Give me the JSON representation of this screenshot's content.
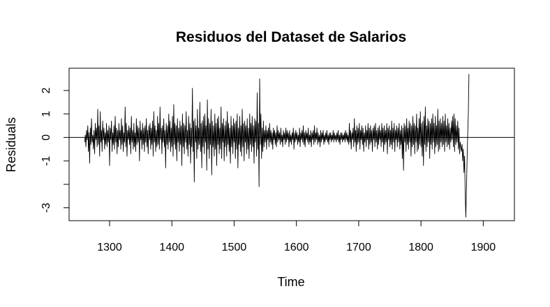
{
  "chart_data": {
    "type": "line",
    "title": "Residuos del Dataset de Salarios",
    "xlabel": "Time",
    "ylabel": "Residuals",
    "xlim": [
      1235,
      1950
    ],
    "ylim": [
      -3.55,
      2.95
    ],
    "x_ticks": [
      1300,
      1400,
      1500,
      1600,
      1700,
      1800,
      1900
    ],
    "x_tick_labels": [
      "1300",
      "1400",
      "1500",
      "1600",
      "1700",
      "1800",
      "1900"
    ],
    "y_ticks": [
      2,
      1,
      0,
      -1,
      -2,
      -3
    ],
    "y_tick_labels": [
      "2",
      "1",
      "0",
      "-1",
      "",
      "-3"
    ],
    "reference_line_y": 0,
    "grid": false,
    "legend": "none",
    "line_color": "#000000",
    "series": [
      {
        "x_start": 1260,
        "x_step": 1,
        "values": [
          -0.2,
          0.1,
          -0.4,
          0.3,
          -0.1,
          0.5,
          -0.6,
          0.2,
          -1.1,
          0.4,
          -0.3,
          0.8,
          -0.2,
          0.1,
          -0.5,
          0.3,
          -0.7,
          0.6,
          -0.1,
          0.4,
          -0.4,
          1.2,
          -0.3,
          0.5,
          -0.8,
          1.1,
          -0.2,
          0.3,
          -0.6,
          0.7,
          -0.1,
          0.4,
          -0.5,
          0.2,
          -0.3,
          0.6,
          -0.4,
          0.3,
          -0.2,
          0.5,
          -1.2,
          0.4,
          -0.1,
          0.7,
          -0.6,
          0.2,
          -0.3,
          0.5,
          -0.5,
          0.9,
          -0.2,
          0.4,
          -0.7,
          0.3,
          -0.4,
          0.6,
          -0.1,
          0.3,
          -0.5,
          0.8,
          -0.3,
          0.5,
          -0.6,
          0.2,
          -0.2,
          1.3,
          -0.4,
          0.6,
          -0.8,
          0.3,
          -0.1,
          0.5,
          -0.3,
          0.4,
          -0.7,
          0.9,
          -0.2,
          0.3,
          -0.5,
          0.6,
          -0.4,
          0.2,
          -0.6,
          0.8,
          -0.3,
          0.5,
          -0.2,
          0.4,
          -1.0,
          0.7,
          -0.1,
          0.3,
          -0.5,
          0.6,
          -0.3,
          0.4,
          -0.6,
          0.5,
          -0.2,
          0.8,
          -0.4,
          0.3,
          -0.7,
          0.5,
          -0.1,
          0.6,
          -0.5,
          0.4,
          -0.3,
          0.7,
          -0.8,
          1.1,
          -0.2,
          0.5,
          -0.6,
          0.3,
          -0.4,
          0.9,
          -0.3,
          0.6,
          -0.5,
          1.3,
          -0.1,
          0.4,
          -0.7,
          0.5,
          -0.2,
          0.8,
          -0.4,
          0.3,
          -1.3,
          0.6,
          -0.3,
          0.5,
          -0.5,
          1.0,
          -0.2,
          0.7,
          -0.6,
          0.4,
          -0.4,
          0.9,
          -0.8,
          1.4,
          -0.3,
          0.6,
          -0.5,
          0.5,
          -1.0,
          0.8,
          -0.2,
          0.4,
          -0.6,
          0.7,
          -0.3,
          0.5,
          -1.2,
          1.0,
          -0.4,
          0.6,
          -0.7,
          0.5,
          -0.2,
          1.1,
          -0.5,
          0.3,
          -0.8,
          0.9,
          -0.3,
          0.6,
          -1.1,
          0.4,
          -0.4,
          2.1,
          -0.6,
          0.7,
          -1.9,
          0.8,
          -0.2,
          0.5,
          -0.9,
          1.2,
          -0.5,
          0.4,
          -0.3,
          1.5,
          -0.6,
          0.6,
          -1.3,
          0.7,
          -0.4,
          0.9,
          -0.7,
          1.0,
          -0.2,
          0.5,
          -1.4,
          1.6,
          -0.5,
          0.8,
          -0.9,
          0.6,
          -0.3,
          1.2,
          -1.6,
          0.7,
          -0.4,
          0.5,
          -0.8,
          1.0,
          -0.5,
          0.6,
          -1.2,
          0.8,
          -0.3,
          0.9,
          -0.7,
          0.4,
          -0.5,
          1.3,
          -0.9,
          0.6,
          -0.2,
          0.8,
          -1.0,
          0.5,
          -0.4,
          0.7,
          -0.8,
          1.1,
          -0.3,
          0.6,
          -0.6,
          0.4,
          -1.1,
          0.9,
          -0.4,
          0.5,
          -0.7,
          0.8,
          -0.2,
          0.6,
          -0.9,
          0.7,
          -0.5,
          1.0,
          -1.3,
          0.4,
          -0.3,
          0.9,
          -0.6,
          0.5,
          -0.8,
          1.2,
          -0.4,
          0.6,
          -1.0,
          0.7,
          -0.2,
          0.5,
          -0.7,
          0.8,
          -0.5,
          0.4,
          -0.9,
          1.0,
          -0.3,
          0.6,
          -0.6,
          0.9,
          -0.4,
          0.5,
          -1.1,
          0.8,
          -0.2,
          0.7,
          -0.8,
          1.9,
          -0.5,
          0.6,
          -2.1,
          2.5,
          -0.3,
          1.0,
          -0.9,
          0.4,
          -0.6,
          0.7,
          -0.4,
          0.3,
          -0.2,
          0.5,
          -0.5,
          0.3,
          -0.1,
          0.4,
          -0.4,
          0.6,
          -0.2,
          0.3,
          -0.3,
          0.2,
          -0.5,
          0.4,
          -0.1,
          0.3,
          -0.3,
          0.2,
          -0.4,
          0.5,
          -0.2,
          0.3,
          -0.1,
          0.2,
          -0.3,
          0.4,
          -0.2,
          0.1,
          -0.4,
          0.3,
          -0.1,
          0.2,
          -0.3,
          0.4,
          -0.2,
          0.3,
          -0.1,
          0.2,
          -0.4,
          0.3,
          -0.2,
          0.1,
          -0.3,
          0.2,
          -0.1,
          0.4,
          -0.5,
          0.2,
          -0.2,
          0.3,
          -0.1,
          0.2,
          -0.3,
          0.1,
          -0.2,
          0.4,
          -0.4,
          0.2,
          -0.1,
          0.3,
          -0.2,
          0.5,
          -0.3,
          0.2,
          -0.4,
          0.3,
          -0.1,
          0.2,
          -0.2,
          0.4,
          -0.3,
          0.1,
          -0.2,
          0.3,
          -0.4,
          0.2,
          -0.1,
          0.3,
          -0.3,
          0.5,
          -0.2,
          0.2,
          -0.1,
          0.4,
          -0.3,
          0.2,
          -0.2,
          0.1,
          -0.4,
          0.3,
          -0.2,
          0.2,
          -0.1,
          0.3,
          -0.3,
          0.1,
          -0.2,
          0.2,
          -0.1,
          0.3,
          -0.2,
          0.1,
          -0.3,
          0.2,
          -0.1,
          0.2,
          -0.2,
          0.1,
          -0.1,
          0.3,
          -0.2,
          0.2,
          -0.1,
          0.1,
          -0.2,
          0.2,
          -0.1,
          0.3,
          -0.2,
          0.1,
          -0.3,
          0.2,
          -0.1,
          0.2,
          -0.2,
          0.1,
          -0.1,
          0.2,
          -0.2,
          0.3,
          -0.1,
          0.2,
          -0.2,
          0.1,
          -0.3,
          0.6,
          -0.2,
          0.3,
          -0.5,
          0.2,
          -0.1,
          0.4,
          -0.4,
          0.8,
          -0.2,
          0.3,
          -0.6,
          0.5,
          -0.3,
          0.4,
          -0.2,
          0.6,
          -0.5,
          0.3,
          -0.1,
          0.5,
          -0.3,
          0.4,
          -0.6,
          0.2,
          -0.2,
          0.5,
          -0.4,
          0.3,
          -0.1,
          0.6,
          -0.5,
          0.4,
          -0.3,
          0.5,
          -0.2,
          0.3,
          -0.6,
          0.4,
          -0.1,
          0.5,
          -0.4,
          0.6,
          -0.2,
          0.3,
          -0.5,
          0.4,
          -0.3,
          0.5,
          -0.1,
          0.3,
          -0.4,
          0.6,
          -0.2,
          0.4,
          -0.6,
          0.5,
          -0.3,
          0.3,
          -0.2,
          0.6,
          -0.7,
          0.4,
          -0.1,
          0.5,
          -0.4,
          0.3,
          -0.3,
          0.7,
          -0.5,
          0.4,
          -0.2,
          0.6,
          -0.6,
          0.3,
          -0.1,
          0.5,
          -0.4,
          0.4,
          -0.2,
          0.6,
          -0.5,
          0.3,
          -0.3,
          0.5,
          -0.9,
          0.4,
          -1.4,
          0.6,
          -0.2,
          0.5,
          -0.6,
          0.8,
          -0.3,
          0.4,
          -0.5,
          0.7,
          -0.2,
          0.6,
          -0.8,
          0.5,
          -0.4,
          0.9,
          -0.3,
          0.6,
          -0.7,
          0.5,
          -0.2,
          1.0,
          -0.6,
          0.4,
          -0.5,
          0.8,
          -0.3,
          1.1,
          -0.4,
          0.6,
          -0.8,
          0.7,
          -1.2,
          0.9,
          -0.3,
          1.3,
          -0.6,
          0.5,
          -0.4,
          0.8,
          -0.2,
          0.7,
          -0.9,
          0.6,
          -0.3,
          0.8,
          -0.5,
          1.0,
          -0.2,
          0.6,
          -0.7,
          0.9,
          -0.4,
          0.5,
          -0.3,
          1.2,
          -0.6,
          0.7,
          -0.5,
          0.8,
          -0.2,
          0.6,
          -0.4,
          0.9,
          -0.3,
          0.7,
          -0.6,
          1.0,
          -0.2,
          0.5,
          -0.4,
          0.8,
          -0.3,
          0.6,
          -0.5,
          0.4,
          -0.2,
          0.7,
          -0.1,
          0.9,
          -0.4,
          1.0,
          -0.6,
          0.8,
          -0.3,
          0.5,
          -0.2,
          0.7,
          -0.5,
          0.4,
          -0.7,
          -0.2,
          -0.4,
          -0.6,
          -0.3,
          -1.0,
          -0.5,
          -1.5,
          -0.8,
          -2.4,
          -3.4,
          -2.2,
          -1.0,
          0.1,
          1.0,
          2.7
        ]
      }
    ]
  }
}
